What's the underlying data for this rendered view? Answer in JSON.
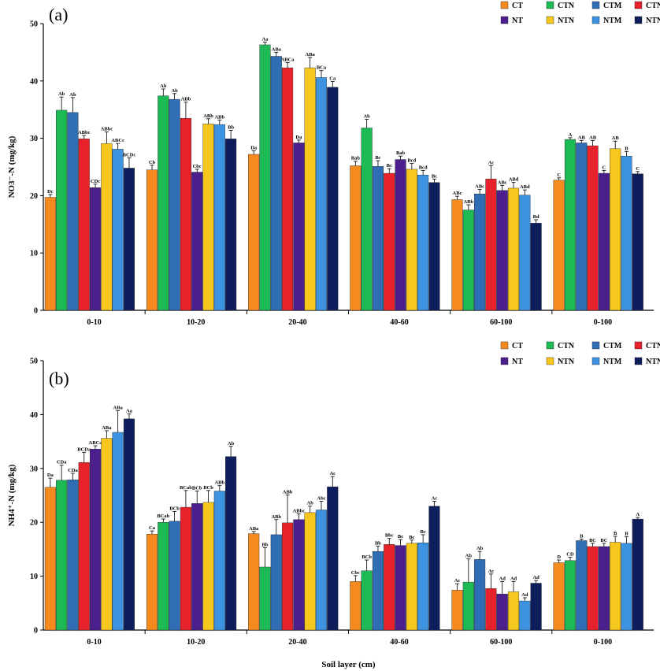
{
  "colors": {
    "CT": "#F58A1F",
    "CTN": "#1DB954",
    "CTM": "#2F6DB5",
    "CTNM": "#E8222A",
    "NT": "#4B1F8C",
    "NTN": "#F6C71C",
    "NTM": "#3E93E0",
    "NTNM": "#0E1E5C"
  },
  "chart_data": [
    {
      "type": "bar",
      "panel_label": "(a)",
      "ylabel": "NO3⁻-N (mg/kg)",
      "xlabel": "",
      "ylim": [
        0,
        50
      ],
      "yticks": [
        "0",
        "10",
        "20",
        "30",
        "40",
        "50"
      ],
      "categories": [
        "0-10",
        "10-20",
        "20-40",
        "40-60",
        "60-100",
        "0-100"
      ],
      "series": [
        {
          "name": "CT",
          "values": [
            19.7,
            24.5,
            27.2,
            25.2,
            19.3,
            22.7
          ],
          "errors": [
            0.5,
            0.8,
            0.6,
            0.8,
            0.6,
            0.4
          ],
          "labels": [
            "Dc",
            "Cb",
            "Da",
            "Bab",
            "ABc",
            "C"
          ]
        },
        {
          "name": "CTN",
          "values": [
            34.9,
            37.4,
            46.3,
            31.8,
            17.5,
            29.8
          ],
          "errors": [
            2.3,
            1.2,
            0.5,
            1.5,
            0.9,
            0.3
          ],
          "labels": [
            "Ab",
            "Ab",
            "Aa",
            "Ab",
            "ABb",
            "A"
          ]
        },
        {
          "name": "CTM",
          "values": [
            34.5,
            36.8,
            44.3,
            25.1,
            20.3,
            29.2
          ],
          "errors": [
            2.6,
            1.0,
            0.7,
            1.0,
            0.8,
            0.4
          ],
          "labels": [
            "Ab",
            "Ab",
            "ABa",
            "Bc",
            "ABc",
            "AB"
          ]
        },
        {
          "name": "CTNM",
          "values": [
            29.9,
            33.5,
            42.3,
            23.9,
            22.9,
            28.7
          ],
          "errors": [
            0.6,
            2.8,
            0.9,
            0.8,
            2.3,
            0.9
          ],
          "labels": [
            "ABbc",
            "ABb",
            "ABCa",
            "Bc",
            "Ac",
            "AB"
          ]
        },
        {
          "name": "NT",
          "values": [
            21.4,
            24.1,
            29.2,
            26.3,
            20.9,
            23.9
          ],
          "errors": [
            0.6,
            0.5,
            0.5,
            0.6,
            0.9,
            0.5
          ],
          "labels": [
            "CDc",
            "Cbc",
            "Da",
            "Bab",
            "ABc",
            "C"
          ]
        },
        {
          "name": "NTN",
          "values": [
            29.1,
            32.5,
            42.3,
            24.6,
            21.3,
            28.2
          ],
          "errors": [
            2.0,
            0.9,
            1.8,
            1.0,
            1.0,
            1.3
          ],
          "labels": [
            "ABbc",
            "ABb",
            "ABa",
            "Bcd",
            "ABd",
            "AB"
          ]
        },
        {
          "name": "NTM",
          "values": [
            28.1,
            32.4,
            40.6,
            23.6,
            20.1,
            26.9
          ],
          "errors": [
            1.0,
            0.8,
            1.2,
            0.8,
            0.9,
            0.8
          ],
          "labels": [
            "ABCc",
            "ABb",
            "BCa",
            "Bcd",
            "ABd",
            "B"
          ]
        },
        {
          "name": "NTNM",
          "values": [
            24.8,
            29.9,
            38.9,
            22.3,
            15.2,
            23.8
          ],
          "errors": [
            1.8,
            1.5,
            1.0,
            0.6,
            0.6,
            0.4
          ],
          "labels": [
            "BCDc",
            "Bb",
            "Ca",
            "Bc",
            "Bd",
            "C"
          ]
        }
      ]
    },
    {
      "type": "bar",
      "panel_label": "(b)",
      "ylabel": "NH4⁺-N (mg/kg)",
      "xlabel": "Soil layer (cm)",
      "ylim": [
        0,
        50
      ],
      "yticks": [
        "0",
        "10",
        "20",
        "30",
        "40",
        "50"
      ],
      "categories": [
        "0-10",
        "10-20",
        "20-40",
        "40-60",
        "60-100",
        "0-100"
      ],
      "series": [
        {
          "name": "CT",
          "values": [
            26.5,
            17.8,
            17.9,
            9.0,
            7.4,
            12.5
          ],
          "errors": [
            1.7,
            0.6,
            0.4,
            1.1,
            1.2,
            0.5
          ],
          "labels": [
            "Da",
            "Ca",
            "ABa",
            "Cbc",
            "Ac",
            "D"
          ]
        },
        {
          "name": "CTN",
          "values": [
            27.8,
            20.0,
            11.7,
            11.0,
            8.9,
            12.9
          ],
          "errors": [
            2.8,
            0.6,
            3.6,
            2.0,
            4.3,
            0.6
          ],
          "labels": [
            "CDa",
            "BCab",
            "Bb",
            "BCb",
            "Ab",
            "CD"
          ]
        },
        {
          "name": "CTM",
          "values": [
            27.9,
            20.2,
            17.7,
            14.6,
            13.1,
            16.6
          ],
          "errors": [
            1.2,
            1.8,
            2.8,
            1.0,
            1.5,
            0.3
          ],
          "labels": [
            "CDa",
            "BCb",
            "ABb",
            "Bb",
            "Ab",
            "B"
          ]
        },
        {
          "name": "CTNM",
          "values": [
            31.1,
            22.8,
            19.9,
            15.9,
            7.7,
            15.5
          ],
          "errors": [
            1.9,
            3.1,
            5.2,
            1.1,
            2.7,
            0.6
          ],
          "labels": [
            "BCDa",
            "BCab",
            "ABb",
            "Bbc",
            "Ac",
            "BC"
          ]
        },
        {
          "name": "NT",
          "values": [
            33.6,
            23.5,
            20.5,
            15.7,
            6.7,
            15.5
          ],
          "errors": [
            0.6,
            2.3,
            1.1,
            1.1,
            2.3,
            0.6
          ],
          "labels": [
            "ABCa",
            "BCb",
            "ABbc",
            "Bc",
            "Ad",
            "BC"
          ]
        },
        {
          "name": "NTN",
          "values": [
            35.6,
            23.7,
            21.8,
            16.1,
            7.1,
            16.3
          ],
          "errors": [
            1.4,
            2.2,
            1.2,
            0.6,
            1.9,
            1.1
          ],
          "labels": [
            "ABa",
            "BCb",
            "Ab",
            "Bc",
            "Ad",
            "B"
          ]
        },
        {
          "name": "NTM",
          "values": [
            36.7,
            25.8,
            22.3,
            16.2,
            5.4,
            16.1
          ],
          "errors": [
            4.0,
            1.0,
            1.6,
            1.5,
            0.6,
            1.2
          ],
          "labels": [
            "ABa",
            "ABb",
            "Abc",
            "Bc",
            "Ad",
            "B"
          ]
        },
        {
          "name": "NTNM",
          "values": [
            39.2,
            32.2,
            26.6,
            23.0,
            8.7,
            20.6
          ],
          "errors": [
            0.9,
            1.9,
            1.9,
            0.9,
            0.5,
            0.3
          ],
          "labels": [
            "Aa",
            "Ab",
            "Ac",
            "Ac",
            "Ad",
            "A"
          ]
        }
      ]
    }
  ]
}
